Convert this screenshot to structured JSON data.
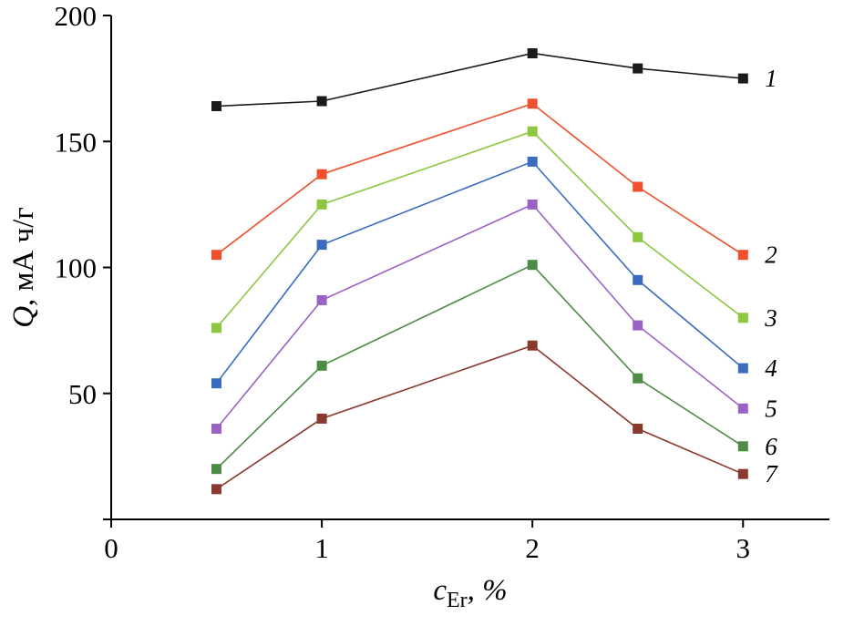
{
  "figure": {
    "description_role": "scientific line chart with square markers"
  },
  "chart_data": {
    "type": "line",
    "title": "",
    "marker": "square",
    "grid": false,
    "legend": "inline-numeric-labels-right-of-last-point",
    "xlabel_italic": "c",
    "xlabel_subscript": "Er",
    "xlabel_suffix": ", %",
    "ylabel_italic": "Q",
    "ylabel_suffix": ", мА ч/г",
    "x": [
      0.5,
      1,
      2,
      2.5,
      3
    ],
    "xlim": [
      0,
      3.41
    ],
    "ylim": [
      0,
      200
    ],
    "xticks": [
      0,
      1,
      2,
      3
    ],
    "yticks": [
      0,
      50,
      100,
      150,
      200
    ],
    "axis_color": "#000000",
    "series": [
      {
        "label": "1",
        "color": "#1a1a1a",
        "values": [
          164,
          166,
          185,
          179,
          175
        ]
      },
      {
        "label": "2",
        "color": "#ef4f2b",
        "values": [
          105,
          137,
          165,
          132,
          105
        ]
      },
      {
        "label": "3",
        "color": "#8dc63f",
        "values": [
          76,
          125,
          154,
          112,
          80
        ]
      },
      {
        "label": "4",
        "color": "#3a6bbf",
        "values": [
          54,
          109,
          142,
          95,
          60
        ]
      },
      {
        "label": "5",
        "color": "#9a63c3",
        "values": [
          36,
          87,
          125,
          77,
          44
        ]
      },
      {
        "label": "6",
        "color": "#4e8b46",
        "values": [
          20,
          61,
          101,
          56,
          29
        ]
      },
      {
        "label": "7",
        "color": "#8a392f",
        "values": [
          12,
          40,
          69,
          36,
          18
        ]
      }
    ]
  }
}
